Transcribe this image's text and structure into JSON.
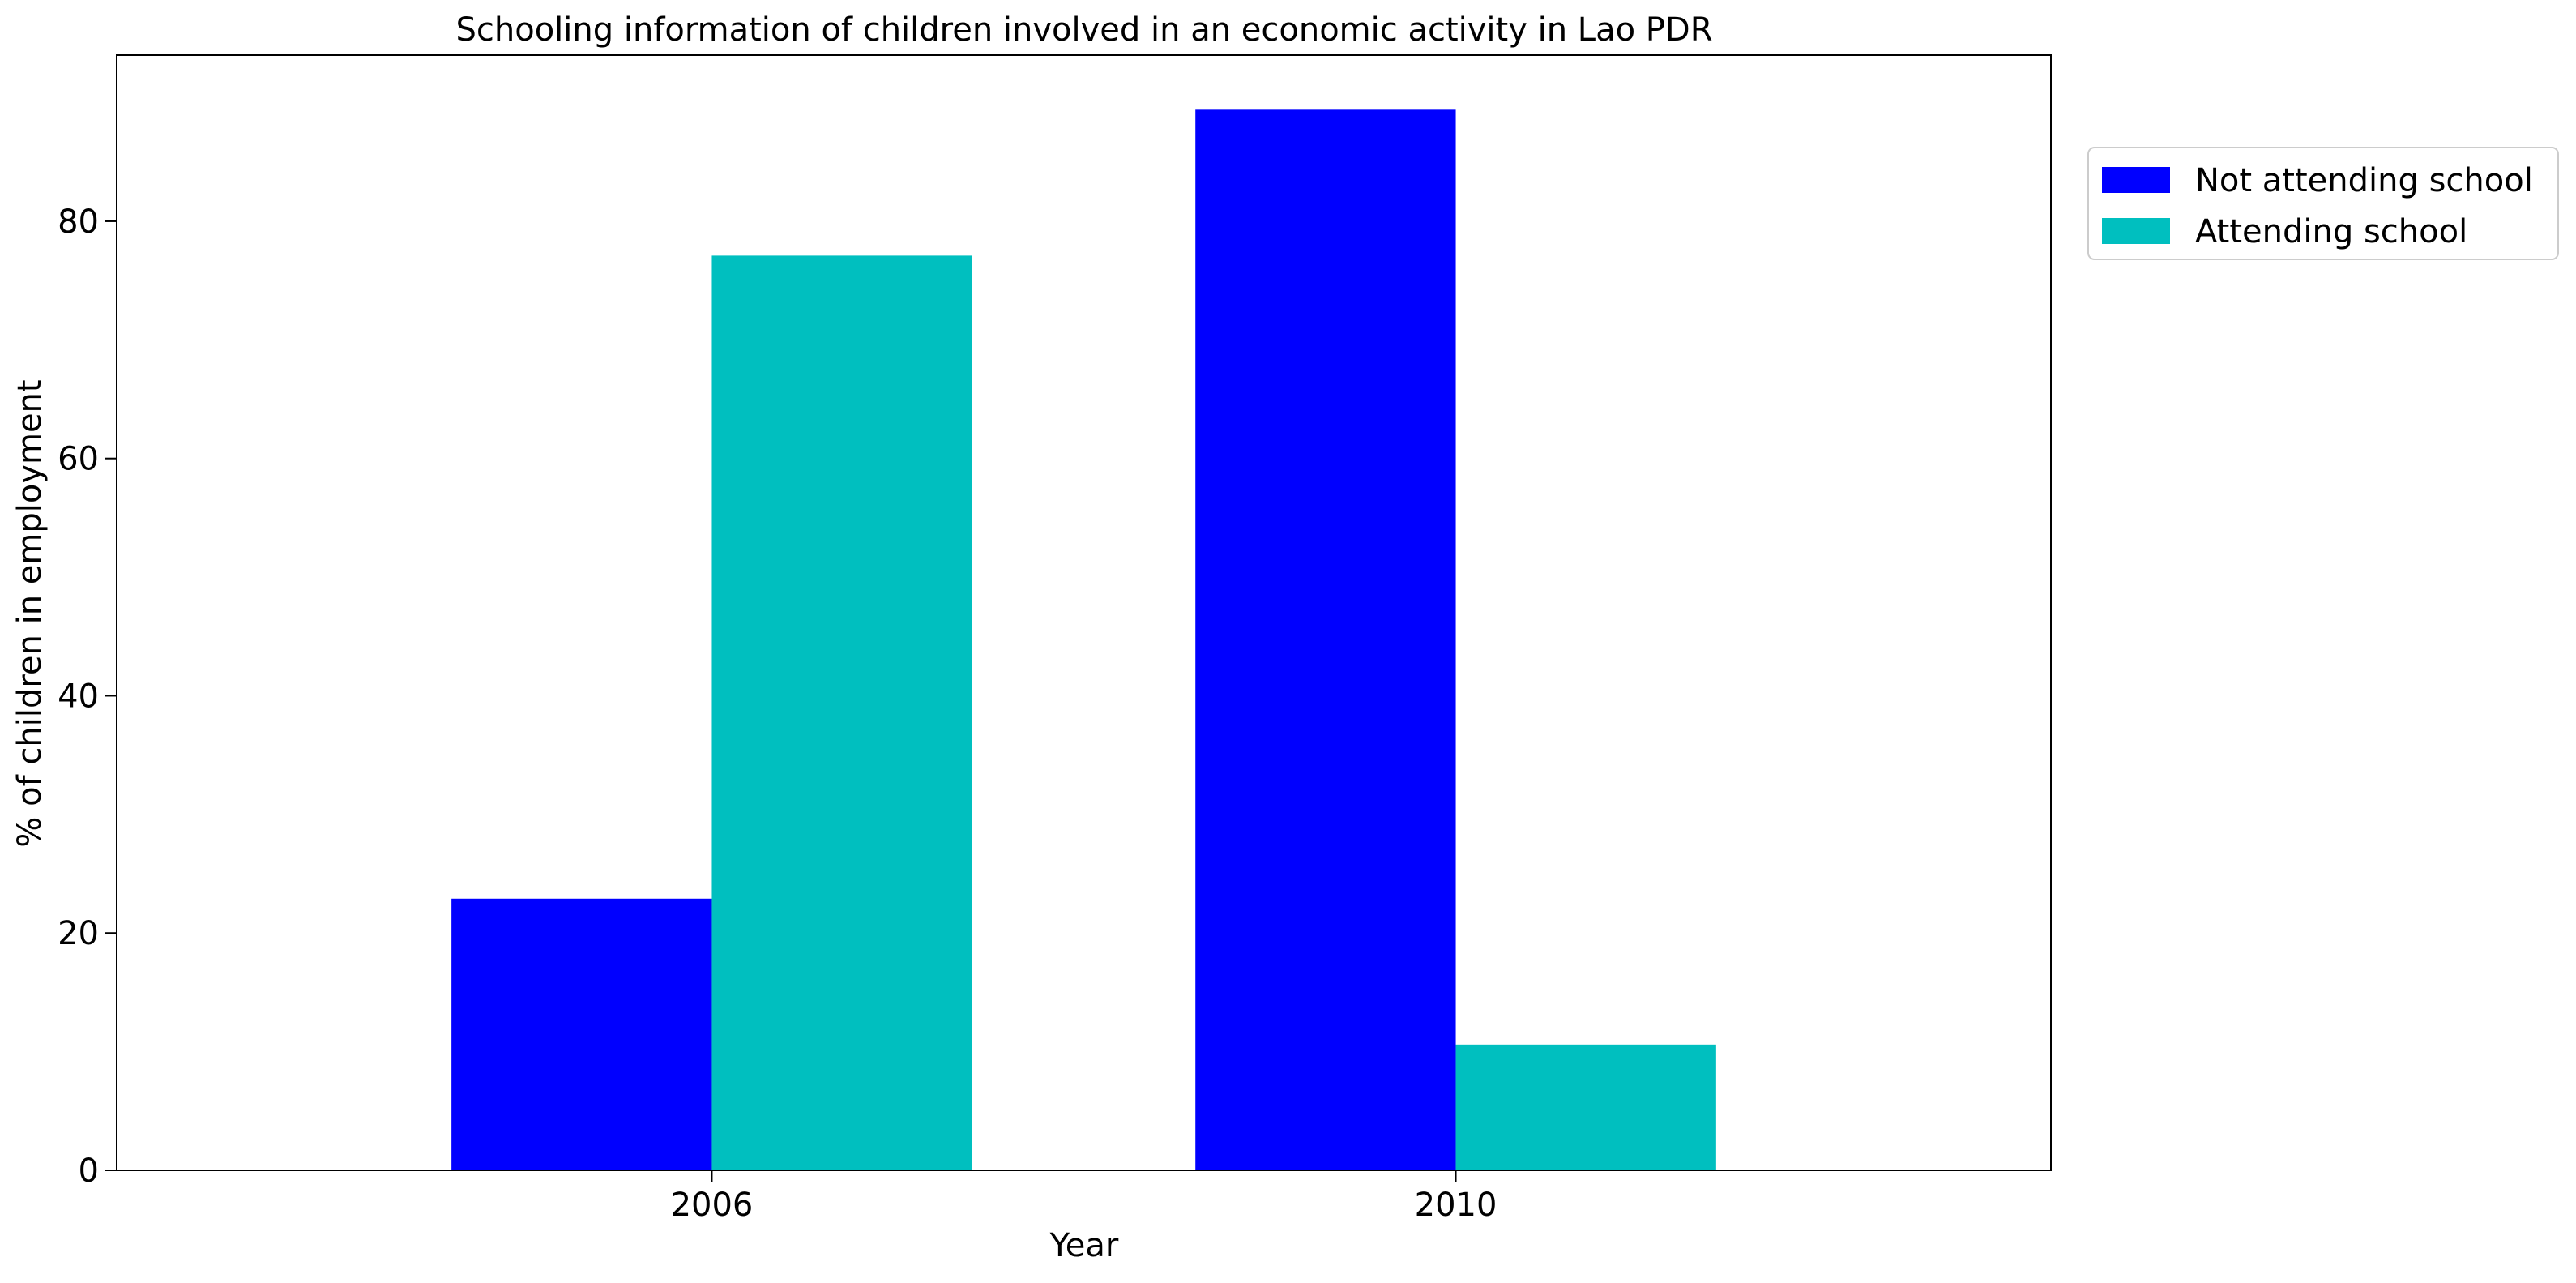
{
  "chart_data": {
    "type": "bar",
    "title": "Schooling information of children involved in an economic activity in Lao PDR",
    "xlabel": "Year",
    "ylabel": "% of children in employment",
    "categories": [
      "2006",
      "2010"
    ],
    "series": [
      {
        "name": "Not attending school",
        "values": [
          22.9,
          89.4
        ],
        "color": "#0000ff"
      },
      {
        "name": "Attending school",
        "values": [
          77.1,
          10.6
        ],
        "color": "#00bfbf"
      }
    ],
    "ylim": [
      0,
      94
    ],
    "yticks": [
      0,
      20,
      40,
      60,
      80
    ],
    "ytick_labels": [
      "0",
      "20",
      "40",
      "60",
      "80"
    ],
    "grid": false,
    "legend_position": "outside-top-right"
  }
}
